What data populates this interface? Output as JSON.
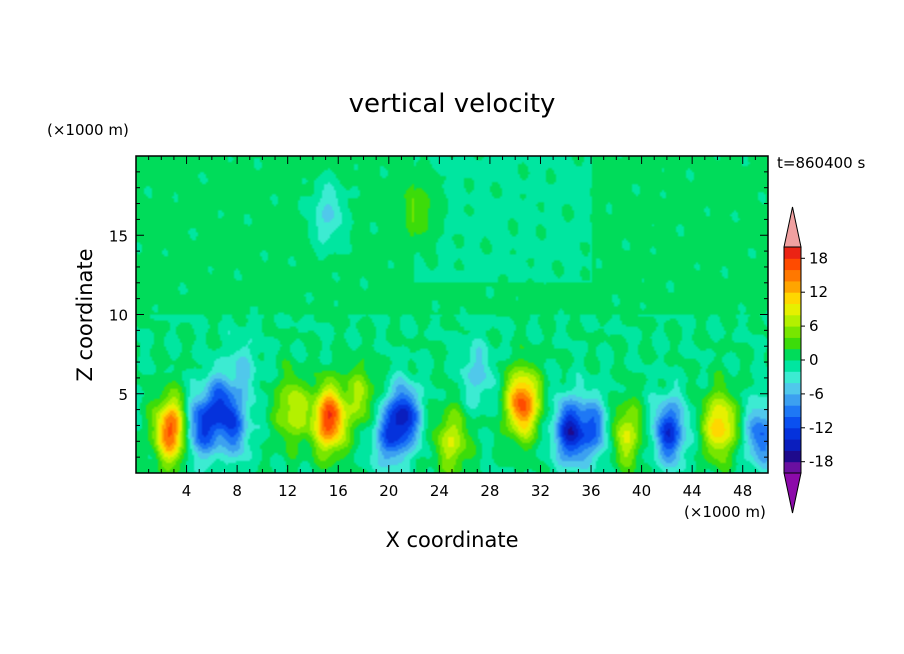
{
  "chart_data": {
    "type": "heatmap",
    "title": "vertical velocity",
    "xlabel": "X coordinate",
    "ylabel": "Z coordinate",
    "x_unit": "(×1000 m)",
    "y_unit": "(×1000 m)",
    "time_label": "t=860400 s",
    "xlim": [
      0,
      50
    ],
    "ylim": [
      0,
      20
    ],
    "x_ticks": [
      4,
      8,
      12,
      16,
      20,
      24,
      28,
      32,
      36,
      40,
      44,
      48
    ],
    "y_ticks": [
      5,
      10,
      15
    ],
    "colorbar": {
      "levels": [
        -20,
        -18,
        -16,
        -14,
        -12,
        -10,
        -8,
        -6,
        -4,
        -2,
        0,
        2,
        4,
        6,
        8,
        10,
        12,
        14,
        16,
        18,
        20
      ],
      "colors": [
        "#6a0fa0",
        "#1e0a8c",
        "#0a1ebe",
        "#0532dc",
        "#0a50f0",
        "#1e78f5",
        "#3ca0f0",
        "#50c8eb",
        "#3cebd2",
        "#00e6a0",
        "#00dc5a",
        "#3cdc0a",
        "#78e600",
        "#b4f000",
        "#e6f000",
        "#ffd700",
        "#ffa500",
        "#ff7800",
        "#ff4b00",
        "#eb2314"
      ],
      "under_color": "#8c0aaa",
      "over_color": "#f0a0a0",
      "tick_labels": [
        "18",
        "12",
        "6",
        "0",
        "-6",
        "-12",
        "-18"
      ]
    },
    "features": [
      {
        "x": 2.8,
        "z": 2.7,
        "amp": 17
      },
      {
        "x": 5.0,
        "z": 2.8,
        "amp": -11
      },
      {
        "x": 6.6,
        "z": 4.2,
        "amp": -10
      },
      {
        "x": 7.8,
        "z": 2.8,
        "amp": -8
      },
      {
        "x": 15.3,
        "z": 3.4,
        "amp": 18
      },
      {
        "x": 12.4,
        "z": 4.0,
        "amp": 8
      },
      {
        "x": 17.8,
        "z": 4.8,
        "amp": 6
      },
      {
        "x": 21.2,
        "z": 3.5,
        "amp": -14
      },
      {
        "x": 19.8,
        "z": 2.2,
        "amp": -8
      },
      {
        "x": 25.0,
        "z": 2.0,
        "amp": 8
      },
      {
        "x": 30.6,
        "z": 4.4,
        "amp": 17
      },
      {
        "x": 34.3,
        "z": 2.6,
        "amp": -14
      },
      {
        "x": 36.2,
        "z": 2.8,
        "amp": -9
      },
      {
        "x": 38.8,
        "z": 2.4,
        "amp": 8
      },
      {
        "x": 42.2,
        "z": 2.6,
        "amp": -13
      },
      {
        "x": 46.2,
        "z": 3.0,
        "amp": 12
      },
      {
        "x": 49.5,
        "z": 2.4,
        "amp": -10
      },
      {
        "x": 15.2,
        "z": 16.3,
        "amp": -5
      },
      {
        "x": 22.5,
        "z": 16.6,
        "amp": 4
      },
      {
        "x": 8.5,
        "z": 6.5,
        "amp": -4
      },
      {
        "x": 27.0,
        "z": 6.2,
        "amp": -5
      }
    ]
  }
}
